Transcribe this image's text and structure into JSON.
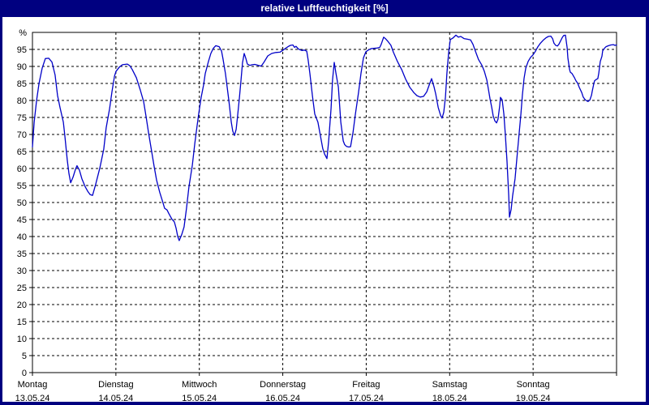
{
  "window": {
    "title": "relative Luftfeuchtigkeit [%]"
  },
  "colors": {
    "frame": "#000080",
    "plot_bg": "#FFFFFF",
    "title_text": "#FFFFFF",
    "line": "#0000C8",
    "grid": "#000000",
    "axis_text": "#000000"
  },
  "chart_data": {
    "type": "line",
    "title": "relative Luftfeuchtigkeit [%]",
    "ylabel": "%",
    "y_top_label": "%",
    "ylim": [
      0,
      100
    ],
    "y_tick_step": 5,
    "y_ticks": [
      0,
      5,
      10,
      15,
      20,
      25,
      30,
      35,
      40,
      45,
      50,
      55,
      60,
      65,
      70,
      75,
      80,
      85,
      90,
      95
    ],
    "grid": "dashed, horizontal every 5%, vertical at day boundaries",
    "legend": "none",
    "x_axis": {
      "unit": "hours since Monday 13.05.24 00:00",
      "range_hours": [
        0,
        168
      ],
      "tick_hours": [
        0,
        24,
        48,
        72,
        96,
        120,
        144,
        168
      ],
      "day_labels": [
        {
          "hour": 0,
          "weekday": "Montag",
          "date": "13.05.24"
        },
        {
          "hour": 24,
          "weekday": "Dienstag",
          "date": "14.05.24"
        },
        {
          "hour": 48,
          "weekday": "Mittwoch",
          "date": "15.05.24"
        },
        {
          "hour": 72,
          "weekday": "Donnerstag",
          "date": "16.05.24"
        },
        {
          "hour": 96,
          "weekday": "Freitag",
          "date": "17.05.24"
        },
        {
          "hour": 120,
          "weekday": "Samstag",
          "date": "18.05.24"
        },
        {
          "hour": 144,
          "weekday": "Sonntag",
          "date": "19.05.24"
        }
      ]
    },
    "series": [
      {
        "name": "relative Luftfeuchtigkeit",
        "color": "#0000C8",
        "points": [
          [
            0.0,
            66.3
          ],
          [
            0.5,
            73.6
          ],
          [
            1.2,
            80
          ],
          [
            1.9,
            85
          ],
          [
            2.8,
            89.5
          ],
          [
            3.7,
            92.3
          ],
          [
            4.7,
            92.4
          ],
          [
            5.6,
            91.3
          ],
          [
            6.5,
            87.5
          ],
          [
            7.2,
            81.5
          ],
          [
            7.9,
            78
          ],
          [
            8.9,
            73.6
          ],
          [
            9.3,
            69.7
          ],
          [
            10.0,
            62.5
          ],
          [
            10.5,
            58.5
          ],
          [
            11.0,
            55.8
          ],
          [
            11.7,
            57.5
          ],
          [
            12.4,
            59.8
          ],
          [
            12.8,
            60.8
          ],
          [
            13.5,
            59.5
          ],
          [
            14.2,
            57
          ],
          [
            15.2,
            54.6
          ],
          [
            15.9,
            53.3
          ],
          [
            16.6,
            52.3
          ],
          [
            17.3,
            52.1
          ],
          [
            18.2,
            55.4
          ],
          [
            19.4,
            60.2
          ],
          [
            20.5,
            65.7
          ],
          [
            21.2,
            72
          ],
          [
            22.2,
            77.6
          ],
          [
            22.9,
            82.7
          ],
          [
            23.6,
            87.1
          ],
          [
            24.0,
            88.5
          ],
          [
            25.0,
            89.8
          ],
          [
            25.9,
            90.5
          ],
          [
            27.3,
            90.7
          ],
          [
            28.0,
            90.2
          ],
          [
            28.7,
            89.1
          ],
          [
            29.9,
            86.7
          ],
          [
            31.0,
            83.1
          ],
          [
            32.0,
            79.6
          ],
          [
            32.7,
            75.2
          ],
          [
            33.4,
            70.5
          ],
          [
            34.3,
            64.9
          ],
          [
            35.0,
            60.6
          ],
          [
            35.7,
            56.6
          ],
          [
            36.6,
            53
          ],
          [
            37.3,
            50.7
          ],
          [
            38.0,
            48.3
          ],
          [
            38.7,
            47.8
          ],
          [
            39.2,
            46.8
          ],
          [
            40.1,
            45.1
          ],
          [
            40.8,
            44.3
          ],
          [
            41.3,
            42.5
          ],
          [
            41.8,
            40
          ],
          [
            42.2,
            38.8
          ],
          [
            42.9,
            40.5
          ],
          [
            43.6,
            42.8
          ],
          [
            44.3,
            48.3
          ],
          [
            45.0,
            54.6
          ],
          [
            46.0,
            61
          ],
          [
            46.7,
            67.3
          ],
          [
            47.4,
            72.8
          ],
          [
            47.8,
            76
          ],
          [
            48.5,
            80.8
          ],
          [
            49.2,
            84.5
          ],
          [
            49.7,
            87.9
          ],
          [
            50.6,
            91.4
          ],
          [
            51.3,
            93.8
          ],
          [
            52.0,
            95.3
          ],
          [
            52.7,
            96.1
          ],
          [
            53.7,
            95.8
          ],
          [
            54.4,
            94.5
          ],
          [
            54.8,
            92.2
          ],
          [
            55.5,
            87.9
          ],
          [
            56.5,
            80
          ],
          [
            57.2,
            73.6
          ],
          [
            57.6,
            71
          ],
          [
            58.1,
            69.7
          ],
          [
            58.6,
            71.5
          ],
          [
            59.0,
            75.5
          ],
          [
            59.5,
            80.5
          ],
          [
            60.0,
            86
          ],
          [
            60.4,
            91
          ],
          [
            60.9,
            93.8
          ],
          [
            61.4,
            92.3
          ],
          [
            61.8,
            90.7
          ],
          [
            62.5,
            90.3
          ],
          [
            63.2,
            90.5
          ],
          [
            63.9,
            90.6
          ],
          [
            64.6,
            90.4
          ],
          [
            65.3,
            90.2
          ],
          [
            65.8,
            90.1
          ],
          [
            66.5,
            91.1
          ],
          [
            67.7,
            93.1
          ],
          [
            68.8,
            93.8
          ],
          [
            70.0,
            94.1
          ],
          [
            71.2,
            94.2
          ],
          [
            72.1,
            94.8
          ],
          [
            72.8,
            95.3
          ],
          [
            73.5,
            95.8
          ],
          [
            74.2,
            96.2
          ],
          [
            74.9,
            96.3
          ],
          [
            75.4,
            95.6
          ],
          [
            75.8,
            95.9
          ],
          [
            76.5,
            95.1
          ],
          [
            77.5,
            94.7
          ],
          [
            78.2,
            94.8
          ],
          [
            78.9,
            94.5
          ],
          [
            79.3,
            91.8
          ],
          [
            79.8,
            87.9
          ],
          [
            80.5,
            81.6
          ],
          [
            81.2,
            76
          ],
          [
            82.1,
            73.6
          ],
          [
            82.8,
            69.7
          ],
          [
            83.5,
            65.8
          ],
          [
            84.0,
            64.3
          ],
          [
            84.7,
            62.9
          ],
          [
            85.2,
            68
          ],
          [
            85.9,
            77.7
          ],
          [
            86.3,
            86
          ],
          [
            86.8,
            91.2
          ],
          [
            87.3,
            88
          ],
          [
            88.0,
            83.9
          ],
          [
            88.7,
            73.6
          ],
          [
            89.4,
            68.1
          ],
          [
            89.8,
            67
          ],
          [
            90.3,
            66.5
          ],
          [
            91.0,
            66.3
          ],
          [
            91.5,
            66.4
          ],
          [
            92.2,
            70.5
          ],
          [
            92.9,
            76
          ],
          [
            93.8,
            82.4
          ],
          [
            94.5,
            88
          ],
          [
            95.2,
            92.5
          ],
          [
            95.9,
            94.3
          ],
          [
            96.6,
            94.8
          ],
          [
            97.3,
            95.2
          ],
          [
            98.2,
            95.3
          ],
          [
            99.2,
            95.4
          ],
          [
            99.9,
            95.6
          ],
          [
            100.3,
            96.5
          ],
          [
            101.0,
            98.6
          ],
          [
            101.5,
            98.2
          ],
          [
            102.2,
            97.4
          ],
          [
            103.1,
            96.2
          ],
          [
            103.8,
            94.2
          ],
          [
            105.0,
            91.4
          ],
          [
            106.2,
            89.1
          ],
          [
            107.3,
            86.3
          ],
          [
            108.5,
            83.9
          ],
          [
            109.7,
            82.3
          ],
          [
            110.6,
            81.4
          ],
          [
            111.5,
            81.0
          ],
          [
            112.5,
            81.2
          ],
          [
            113.4,
            82.5
          ],
          [
            114.1,
            84.5
          ],
          [
            114.8,
            86.4
          ],
          [
            115.5,
            84
          ],
          [
            116.0,
            81.9
          ],
          [
            116.7,
            78
          ],
          [
            117.4,
            75.6
          ],
          [
            117.8,
            74.8
          ],
          [
            118.3,
            76.5
          ],
          [
            118.8,
            81
          ],
          [
            119.2,
            88
          ],
          [
            119.7,
            94
          ],
          [
            120.2,
            97.9
          ],
          [
            120.9,
            98.3
          ],
          [
            121.8,
            99.2
          ],
          [
            122.5,
            98.6
          ],
          [
            123.2,
            98.8
          ],
          [
            124.1,
            98.2
          ],
          [
            125.1,
            98
          ],
          [
            126.0,
            97.8
          ],
          [
            126.7,
            96.5
          ],
          [
            127.4,
            94.5
          ],
          [
            128.3,
            92
          ],
          [
            129.3,
            90.3
          ],
          [
            130.0,
            88.5
          ],
          [
            130.7,
            86
          ],
          [
            131.1,
            83.5
          ],
          [
            131.6,
            80.5
          ],
          [
            132.1,
            78
          ],
          [
            132.5,
            75.5
          ],
          [
            133.0,
            74
          ],
          [
            133.5,
            73.4
          ],
          [
            133.9,
            74.5
          ],
          [
            134.4,
            78.5
          ],
          [
            134.6,
            80.9
          ],
          [
            135.1,
            80.2
          ],
          [
            135.6,
            76
          ],
          [
            136.0,
            70
          ],
          [
            136.5,
            62
          ],
          [
            137.0,
            52
          ],
          [
            137.2,
            45.7
          ],
          [
            137.7,
            48
          ],
          [
            138.1,
            52
          ],
          [
            138.8,
            57
          ],
          [
            139.5,
            65
          ],
          [
            140.0,
            70.5
          ],
          [
            140.5,
            76
          ],
          [
            140.9,
            81.5
          ],
          [
            141.4,
            86.5
          ],
          [
            141.9,
            89.5
          ],
          [
            142.6,
            91.5
          ],
          [
            143.3,
            92.7
          ],
          [
            144.0,
            93.4
          ],
          [
            144.7,
            94.5
          ],
          [
            145.4,
            95.8
          ],
          [
            146.1,
            96.8
          ],
          [
            147.0,
            97.8
          ],
          [
            147.7,
            98.4
          ],
          [
            148.4,
            98.8
          ],
          [
            149.1,
            98.9
          ],
          [
            149.6,
            98.2
          ],
          [
            150.0,
            96.8
          ],
          [
            150.5,
            96.2
          ],
          [
            151.0,
            96.0
          ],
          [
            151.4,
            96.5
          ],
          [
            151.9,
            97.5
          ],
          [
            152.4,
            98.5
          ],
          [
            152.8,
            99.1
          ],
          [
            153.3,
            99.2
          ],
          [
            153.8,
            95.5
          ],
          [
            154.0,
            92.5
          ],
          [
            154.5,
            89.1
          ],
          [
            154.7,
            88.3
          ],
          [
            155.2,
            87.9
          ],
          [
            155.6,
            87.2
          ],
          [
            155.9,
            86.7
          ],
          [
            156.3,
            85.8
          ],
          [
            156.8,
            85.1
          ],
          [
            157.3,
            83.8
          ],
          [
            158.0,
            82.3
          ],
          [
            158.4,
            81
          ],
          [
            158.9,
            80.3
          ],
          [
            159.4,
            79.9
          ],
          [
            159.8,
            79.7
          ],
          [
            160.3,
            80.1
          ],
          [
            160.8,
            81.5
          ],
          [
            161.0,
            82.7
          ],
          [
            161.5,
            85.1
          ],
          [
            161.7,
            85.8
          ],
          [
            162.2,
            86.2
          ],
          [
            162.6,
            86.4
          ],
          [
            162.9,
            88
          ],
          [
            163.3,
            91.4
          ],
          [
            163.8,
            93
          ],
          [
            164.0,
            94.6
          ],
          [
            164.5,
            95.3
          ],
          [
            165.0,
            95.8
          ],
          [
            165.7,
            96.1
          ],
          [
            166.4,
            96.3
          ],
          [
            167.1,
            96.4
          ],
          [
            167.5,
            96.2
          ],
          [
            168.0,
            96.3
          ]
        ]
      }
    ]
  }
}
